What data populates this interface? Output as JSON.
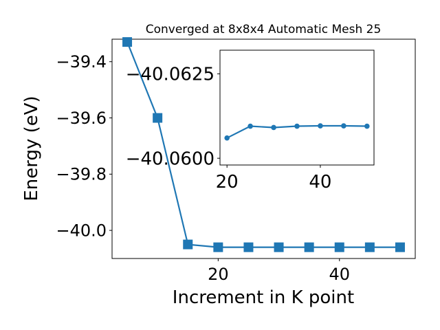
{
  "chart_data": [
    {
      "type": "line",
      "title": "Converged at 8x8x4 Automatic Mesh 25",
      "xlabel": "Increment in K point",
      "ylabel": "Energy (eV)",
      "xlim": [
        2.5,
        52.5
      ],
      "ylim": [
        -40.1,
        -39.32
      ],
      "xticks": [
        20,
        40
      ],
      "yticks": [
        -39.4,
        -39.6,
        -39.8,
        -40.0
      ],
      "xtick_labels": [
        "20",
        "40"
      ],
      "ytick_labels": [
        "−39.4",
        "−39.6",
        "−39.8",
        "−40.0"
      ],
      "grid": false,
      "series": [
        {
          "marker": "square",
          "color": "#1f77b4",
          "x": [
            5,
            10,
            15,
            20,
            25,
            30,
            35,
            40,
            45,
            50
          ],
          "y": [
            -39.33,
            -39.6,
            -40.05,
            -40.06,
            -40.06,
            -40.06,
            -40.06,
            -40.06,
            -40.06,
            -40.06
          ]
        }
      ]
    },
    {
      "type": "line",
      "title": "",
      "xlabel": "",
      "ylabel": "",
      "xlim": [
        18.5,
        51.5
      ],
      "ylim": [
        -40.0598,
        -40.0632
      ],
      "xticks": [
        20,
        40
      ],
      "yticks": [
        -40.0625,
        -40.06
      ],
      "xtick_labels": [
        "20",
        "40"
      ],
      "ytick_labels": [
        "−40.0625",
        "−40.0600"
      ],
      "grid": false,
      "series": [
        {
          "marker": "circle",
          "color": "#1f77b4",
          "x": [
            20,
            25,
            30,
            35,
            40,
            45,
            50
          ],
          "y": [
            -40.0606,
            -40.06095,
            -40.06091,
            -40.06095,
            -40.06096,
            -40.06096,
            -40.06095
          ]
        }
      ]
    }
  ]
}
